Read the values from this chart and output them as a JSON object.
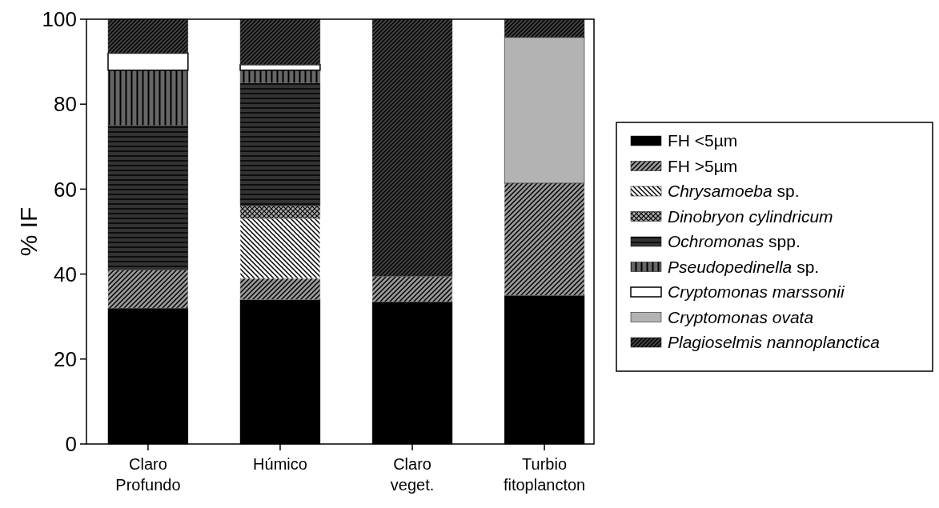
{
  "chart_data": {
    "type": "bar",
    "stacked": true,
    "ylabel": "% IF",
    "categories": [
      "Claro Profundo",
      "Húmico",
      "Claro veget.",
      "Turbio fitoplancton"
    ],
    "series": [
      {
        "name": "FH <5µm",
        "color": "#000000",
        "values": [
          32,
          34,
          33.5,
          35
        ]
      },
      {
        "name": "FH >5µm",
        "color": "#999999",
        "values": [
          9,
          5,
          6,
          26.4
        ]
      },
      {
        "name": "Chrysamoeba sp.",
        "color": "#ffffff",
        "values": [
          0,
          14,
          0,
          0
        ]
      },
      {
        "name": "Dinobryon cylindricum",
        "color": "#aaaaaa",
        "values": [
          0,
          3,
          0,
          0
        ]
      },
      {
        "name": "Ochromonas spp.",
        "color": "#333333",
        "values": [
          34,
          29,
          0,
          0
        ]
      },
      {
        "name": "Pseudopedinella sp.",
        "color": "#666666",
        "values": [
          13,
          3,
          0,
          0
        ]
      },
      {
        "name": "Cryptomonas marssonii",
        "color": "#ffffff",
        "values": [
          4,
          1.3,
          0,
          0
        ]
      },
      {
        "name": "Cryptomonas ovata",
        "color": "#b3b3b3",
        "values": [
          0,
          0,
          0,
          34.3
        ]
      },
      {
        "name": "Plagioselmis nannoplanctica",
        "color": "#444444",
        "values": [
          8,
          10.7,
          60.5,
          4.3
        ]
      }
    ],
    "ylim": [
      0,
      100
    ],
    "yticks": [
      0,
      20,
      40,
      60,
      80,
      100
    ],
    "legend": "right"
  }
}
